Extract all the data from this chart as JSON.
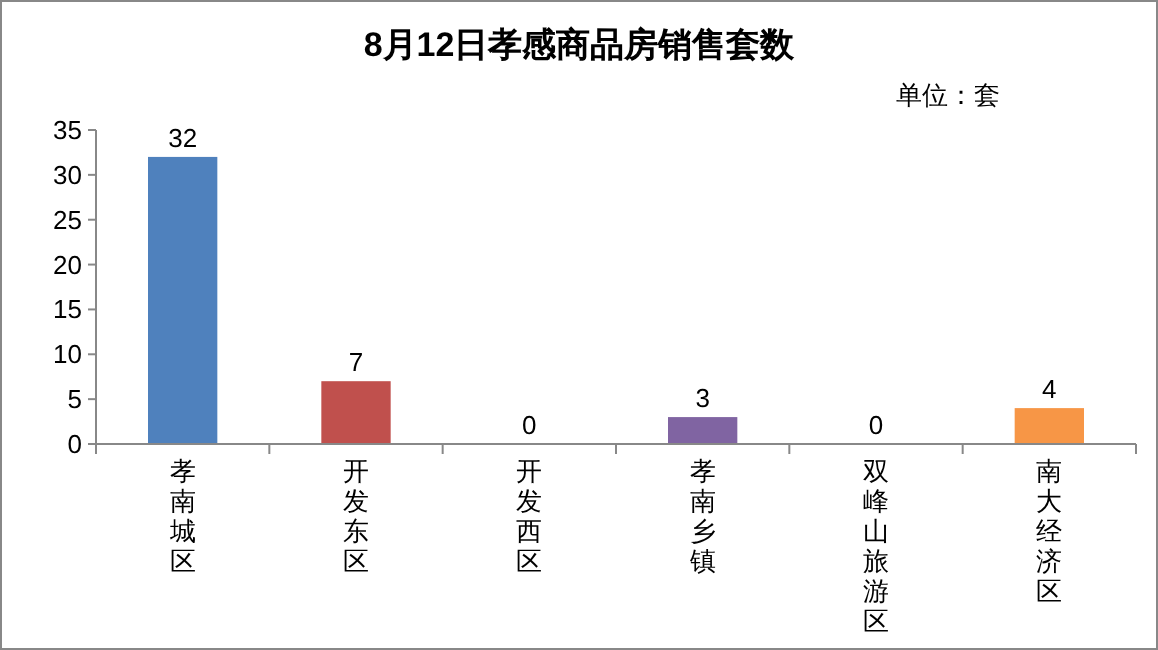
{
  "chart_data": {
    "type": "bar",
    "title": "8月12日孝感商品房销售套数",
    "annotations": [
      "单位：套"
    ],
    "categories": [
      "孝南城区",
      "开发东区",
      "开发西区",
      "孝南乡镇",
      "双峰山旅游区",
      "南大经济区"
    ],
    "values": [
      32,
      7,
      0,
      3,
      0,
      4
    ],
    "colors": [
      "#4f81bd",
      "#c0504d",
      "#9bbb59",
      "#8064a2",
      "#4bacc6",
      "#f79646"
    ],
    "ylim": [
      0,
      35
    ],
    "yticks": [
      0,
      5,
      10,
      15,
      20,
      25,
      30,
      35
    ],
    "data_labels": true,
    "grid": false
  }
}
